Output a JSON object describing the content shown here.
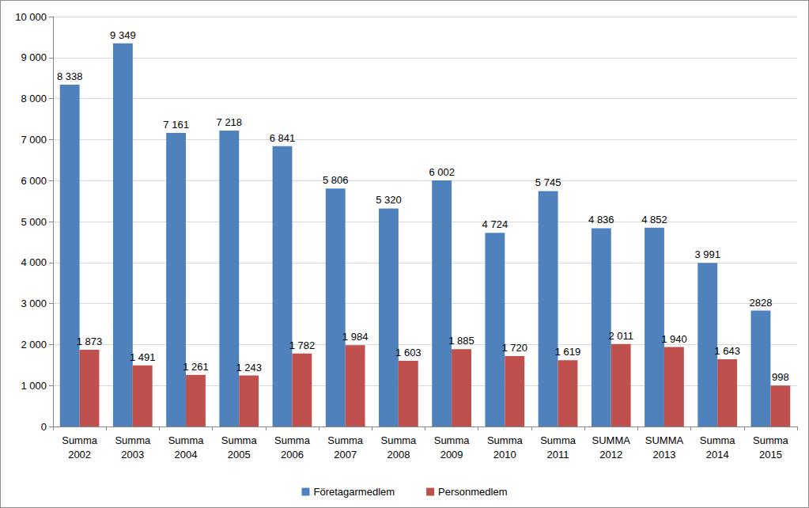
{
  "chart_data": {
    "type": "bar",
    "categories": [
      "Summa 2002",
      "Summa 2003",
      "Summa 2004",
      "Summa 2005",
      "Summa 2006",
      "Summa 2007",
      "Summa 2008",
      "Summa 2009",
      "Summa 2010",
      "Summa 2011",
      "SUMMA 2012",
      "SUMMA 2013",
      "Summa 2014",
      "Summa 2015"
    ],
    "series": [
      {
        "name": "Företagarmedlem",
        "color": "#4f81bd",
        "values": [
          8338,
          9349,
          7161,
          7218,
          6841,
          5806,
          5320,
          6002,
          4724,
          5745,
          4836,
          4852,
          3991,
          2828
        ],
        "value_labels": [
          "8 338",
          "9 349",
          "7 161",
          "7 218",
          "6 841",
          "5 806",
          "5 320",
          "6 002",
          "4 724",
          "5 745",
          "4 836",
          "4 852",
          "3 991",
          "2828"
        ]
      },
      {
        "name": "Personmedlem",
        "color": "#c0504d",
        "values": [
          1873,
          1491,
          1261,
          1243,
          1782,
          1984,
          1603,
          1885,
          1720,
          1619,
          2011,
          1940,
          1643,
          998
        ],
        "value_labels": [
          "1 873",
          "1 491",
          "1 261",
          "1 243",
          "1 782",
          "1 984",
          "1 603",
          "1 885",
          "1 720",
          "1 619",
          "2 011",
          "1 940",
          "1 643",
          "998"
        ]
      }
    ],
    "ylim": [
      0,
      10000
    ],
    "yticks": [
      0,
      {
        "value": 1000,
        "label": "1 000"
      },
      {
        "value": 2000,
        "label": "2 000"
      },
      {
        "value": 3000,
        "label": "3 000"
      },
      {
        "value": 4000,
        "label": "4 000"
      },
      {
        "value": 5000,
        "label": "5 000"
      },
      {
        "value": 6000,
        "label": "6 000"
      },
      {
        "value": 7000,
        "label": "7 000"
      },
      {
        "value": 8000,
        "label": "8 000"
      },
      {
        "value": 9000,
        "label": "9 000"
      },
      {
        "value": 10000,
        "label": "10 000"
      }
    ],
    "grid": true,
    "legend": "bottom",
    "data_labels": true
  }
}
